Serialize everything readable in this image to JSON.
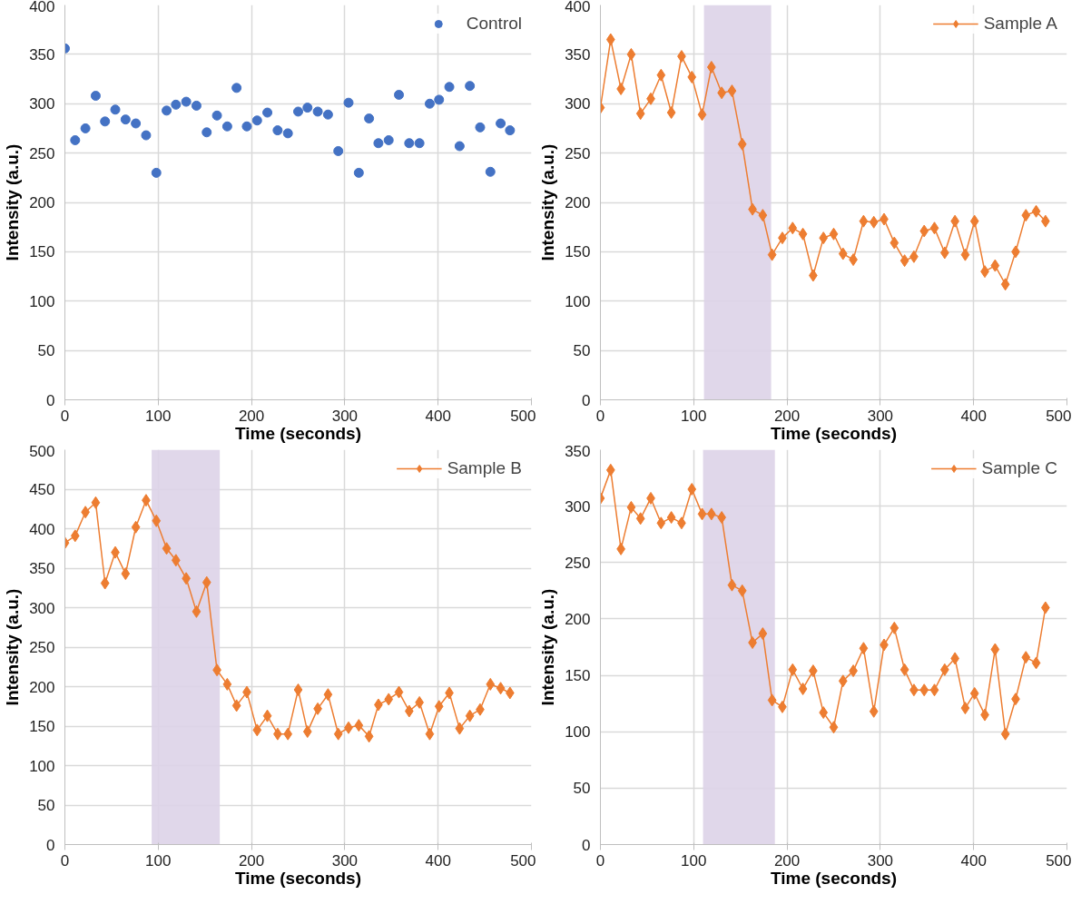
{
  "chart_data": [
    {
      "type": "scatter",
      "xlabel": "Time (seconds)",
      "ylabel": "Intensity (a.u.)",
      "x": [
        0,
        11,
        22,
        33,
        43,
        54,
        65,
        76,
        87,
        98,
        109,
        119,
        130,
        141,
        152,
        163,
        174,
        184,
        195,
        206,
        217,
        228,
        239,
        250,
        260,
        271,
        282,
        293,
        304,
        315,
        326,
        336,
        347,
        358,
        369,
        380,
        391,
        401,
        412,
        423,
        434,
        445,
        456,
        467,
        477
      ],
      "series": [
        {
          "name": "Control",
          "color": "#4472c4",
          "values": [
            356,
            263,
            275,
            308,
            282,
            294,
            284,
            280,
            268,
            230,
            293,
            299,
            302,
            298,
            271,
            288,
            277,
            316,
            277,
            283,
            291,
            273,
            270,
            292,
            296,
            292,
            289,
            252,
            301,
            230,
            285,
            260,
            263,
            309,
            260,
            260,
            300,
            304,
            317,
            257,
            318,
            276,
            231,
            280,
            273
          ]
        }
      ],
      "xlim": [
        0,
        500
      ],
      "xticks": [
        0,
        100,
        200,
        300,
        400,
        500
      ],
      "ylim": [
        0,
        400
      ],
      "yticks": [
        0,
        50,
        100,
        150,
        200,
        250,
        300,
        350,
        400
      ],
      "grid": true,
      "legend": "top right",
      "marker": "circle"
    },
    {
      "type": "line",
      "xlabel": "Time (seconds)",
      "ylabel": "Intensity (a.u.)",
      "x": [
        0,
        11,
        22,
        33,
        43,
        54,
        65,
        76,
        87,
        98,
        109,
        119,
        130,
        141,
        152,
        163,
        174,
        184,
        195,
        206,
        217,
        228,
        239,
        250,
        260,
        271,
        282,
        293,
        304,
        315,
        326,
        336,
        347,
        358,
        369,
        380,
        391,
        401,
        412,
        423,
        434,
        445,
        456,
        467,
        477
      ],
      "series": [
        {
          "name": "Sample A",
          "color": "#ed7d31",
          "values": [
            296,
            365,
            315,
            350,
            290,
            305,
            329,
            291,
            348,
            327,
            289,
            337,
            311,
            313,
            259,
            193,
            187,
            147,
            164,
            174,
            168,
            126,
            164,
            168,
            148,
            142,
            181,
            180,
            183,
            159,
            141,
            145,
            171,
            174,
            149,
            181,
            147,
            181,
            130,
            136,
            117,
            150,
            187,
            191,
            181
          ]
        }
      ],
      "xlim": [
        0,
        500
      ],
      "xticks": [
        0,
        100,
        200,
        300,
        400,
        500
      ],
      "ylim": [
        0,
        400
      ],
      "yticks": [
        0,
        50,
        100,
        150,
        200,
        250,
        300,
        350,
        400
      ],
      "grid": true,
      "legend": "top right",
      "marker": "diamond",
      "line_style": "solid",
      "bands": [
        {
          "axis": "x",
          "from": 111,
          "to": 183,
          "color": "#ddd3e8"
        }
      ]
    },
    {
      "type": "line",
      "xlabel": "Time (seconds)",
      "ylabel": "Intensity (a.u.)",
      "x": [
        0,
        11,
        22,
        33,
        43,
        54,
        65,
        76,
        87,
        98,
        109,
        119,
        130,
        141,
        152,
        163,
        174,
        184,
        195,
        206,
        217,
        228,
        239,
        250,
        260,
        271,
        282,
        293,
        304,
        315,
        326,
        336,
        347,
        358,
        369,
        380,
        391,
        401,
        412,
        423,
        434,
        445,
        456,
        467,
        477
      ],
      "series": [
        {
          "name": "Sample B",
          "color": "#ed7d31",
          "values": [
            382,
            391,
            421,
            433,
            331,
            370,
            343,
            402,
            436,
            410,
            375,
            360,
            337,
            295,
            332,
            221,
            203,
            176,
            193,
            145,
            163,
            140,
            140,
            196,
            143,
            172,
            190,
            140,
            148,
            151,
            137,
            177,
            184,
            193,
            169,
            180,
            140,
            175,
            192,
            147,
            163,
            171,
            203,
            198,
            192
          ]
        }
      ],
      "xlim": [
        0,
        500
      ],
      "xticks": [
        0,
        100,
        200,
        300,
        400,
        500
      ],
      "ylim": [
        0,
        500
      ],
      "yticks": [
        0,
        50,
        100,
        150,
        200,
        250,
        300,
        350,
        400,
        450,
        500
      ],
      "grid": true,
      "legend": "top right",
      "marker": "diamond",
      "line_style": "solid",
      "bands": [
        {
          "axis": "x",
          "from": 93,
          "to": 166,
          "color": "#ddd3e8"
        }
      ]
    },
    {
      "type": "line",
      "xlabel": "Time (seconds)",
      "ylabel": "Intensity (a.u.)",
      "x": [
        0,
        11,
        22,
        33,
        43,
        54,
        65,
        76,
        87,
        98,
        109,
        119,
        130,
        141,
        152,
        163,
        174,
        184,
        195,
        206,
        217,
        228,
        239,
        250,
        260,
        271,
        282,
        293,
        304,
        315,
        326,
        336,
        347,
        358,
        369,
        380,
        391,
        401,
        412,
        423,
        434,
        445,
        456,
        467,
        477
      ],
      "series": [
        {
          "name": "Sample C",
          "color": "#ed7d31",
          "values": [
            307,
            332,
            262,
            299,
            289,
            307,
            285,
            290,
            285,
            315,
            293,
            293,
            290,
            230,
            225,
            179,
            187,
            128,
            122,
            155,
            138,
            154,
            117,
            104,
            145,
            154,
            174,
            118,
            177,
            192,
            155,
            137,
            137,
            137,
            155,
            165,
            121,
            134,
            115,
            173,
            98,
            129,
            166,
            161,
            210
          ]
        }
      ],
      "xlim": [
        0,
        500
      ],
      "xticks": [
        0,
        100,
        200,
        300,
        400,
        500
      ],
      "ylim": [
        0,
        350
      ],
      "yticks": [
        0,
        50,
        100,
        150,
        200,
        250,
        300,
        350
      ],
      "grid": true,
      "legend": "top right",
      "marker": "diamond",
      "line_style": "solid",
      "bands": [
        {
          "axis": "x",
          "from": 110,
          "to": 187,
          "color": "#ddd3e8"
        }
      ]
    }
  ]
}
